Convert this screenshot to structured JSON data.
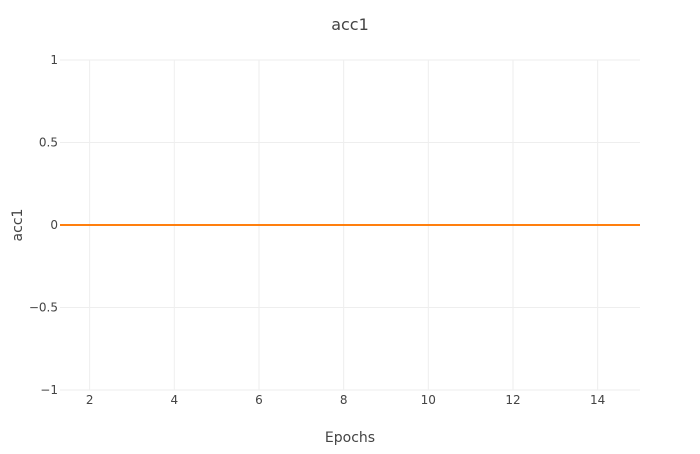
{
  "chart_data": {
    "type": "line",
    "title": "acc1",
    "xlabel": "Epochs",
    "ylabel": "acc1",
    "xlim": [
      1.3,
      15
    ],
    "ylim": [
      -1,
      1
    ],
    "x_ticks": [
      2,
      4,
      6,
      8,
      10,
      12,
      14
    ],
    "y_ticks": [
      1,
      0.5,
      0,
      -0.5,
      -1
    ],
    "y_tick_labels": [
      "1",
      "0.5",
      "0",
      "−0.5",
      "−1"
    ],
    "grid": true,
    "x": [
      1.3,
      15
    ],
    "series": [
      {
        "values": [
          0,
          0
        ],
        "color": "#ff7f0e"
      }
    ]
  },
  "colors": {
    "gridline": "#eeeeee",
    "text": "#444444"
  }
}
